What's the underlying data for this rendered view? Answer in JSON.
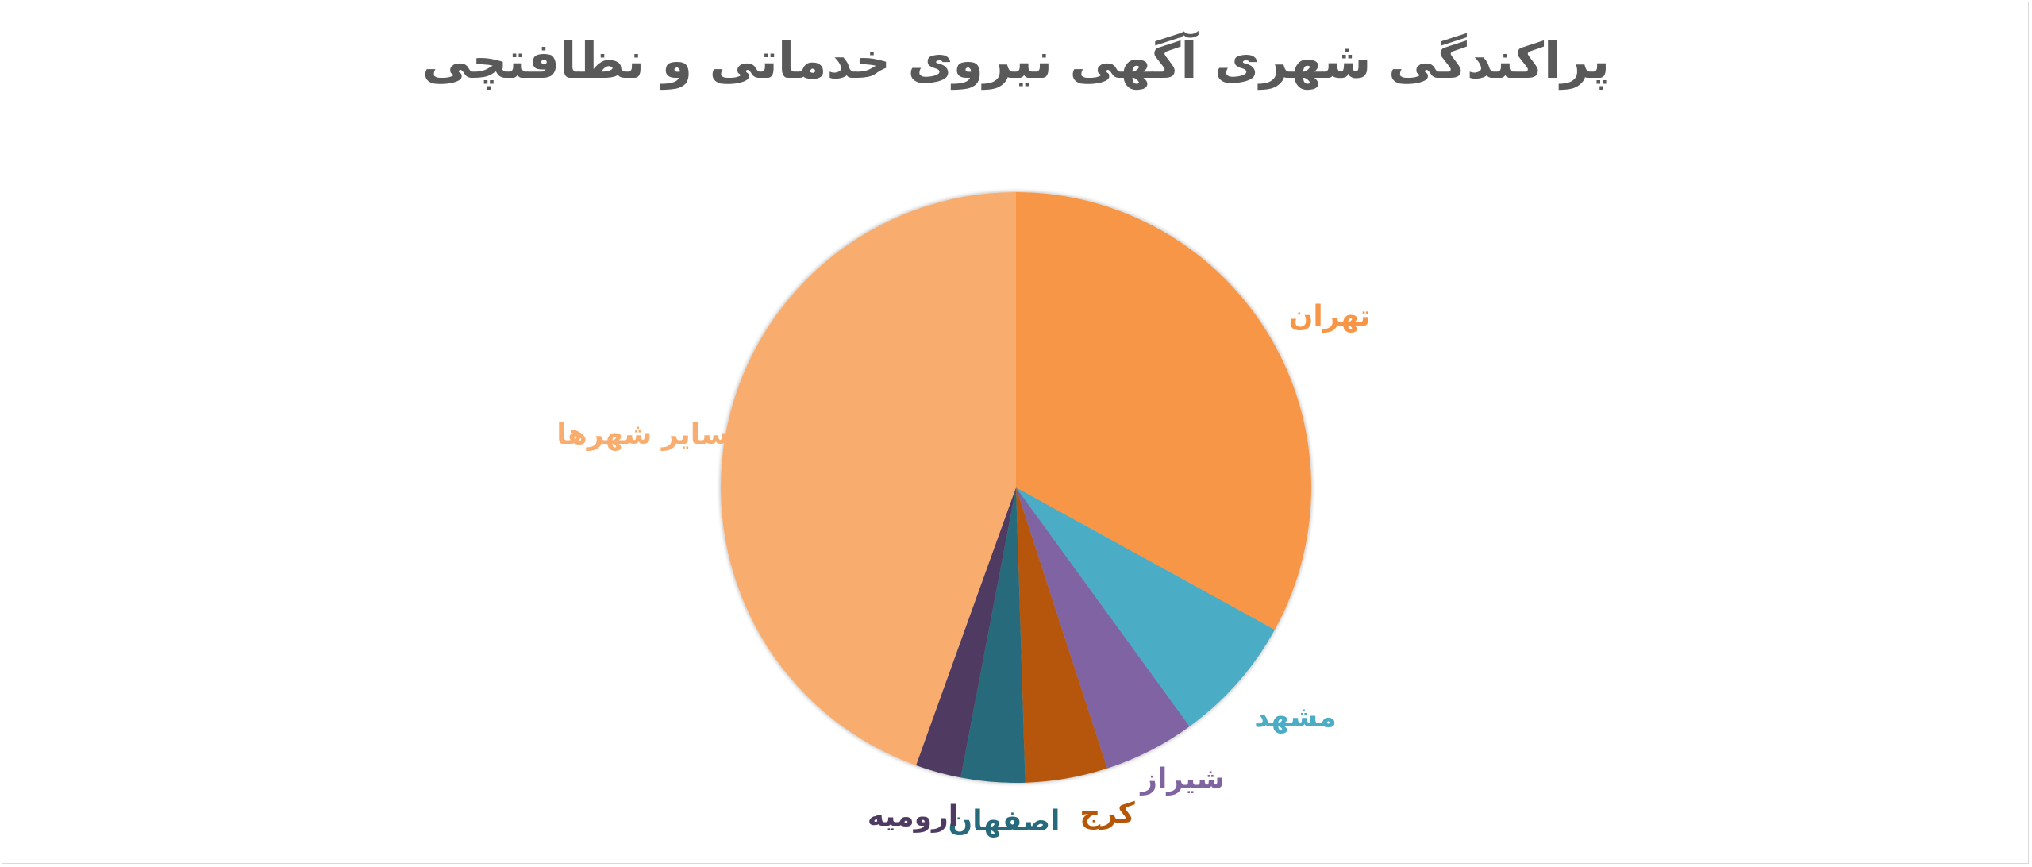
{
  "chart_data": {
    "type": "pie",
    "title": "پراکندگی شهری آگهی نیروی خدماتی و نظافتچی",
    "start_angle_deg": 0,
    "direction": "clockwise",
    "slices": [
      {
        "label": "تهران",
        "value": 33,
        "color": "#F79646"
      },
      {
        "label": "مشهد",
        "value": 7,
        "color": "#4BACC6"
      },
      {
        "label": "شیراز",
        "value": 5,
        "color": "#8064A2"
      },
      {
        "label": "کرج",
        "value": 4.5,
        "color": "#B65708"
      },
      {
        "label": "اصفهان",
        "value": 3.5,
        "color": "#276A7C"
      },
      {
        "label": "ارومیه",
        "value": 2.5,
        "color": "#4F3B62"
      },
      {
        "label": "سایر شهرها",
        "value": 44.5,
        "color": "#F8AC6E"
      }
    ],
    "legend": "none",
    "data_labels": "category names outside slices"
  }
}
